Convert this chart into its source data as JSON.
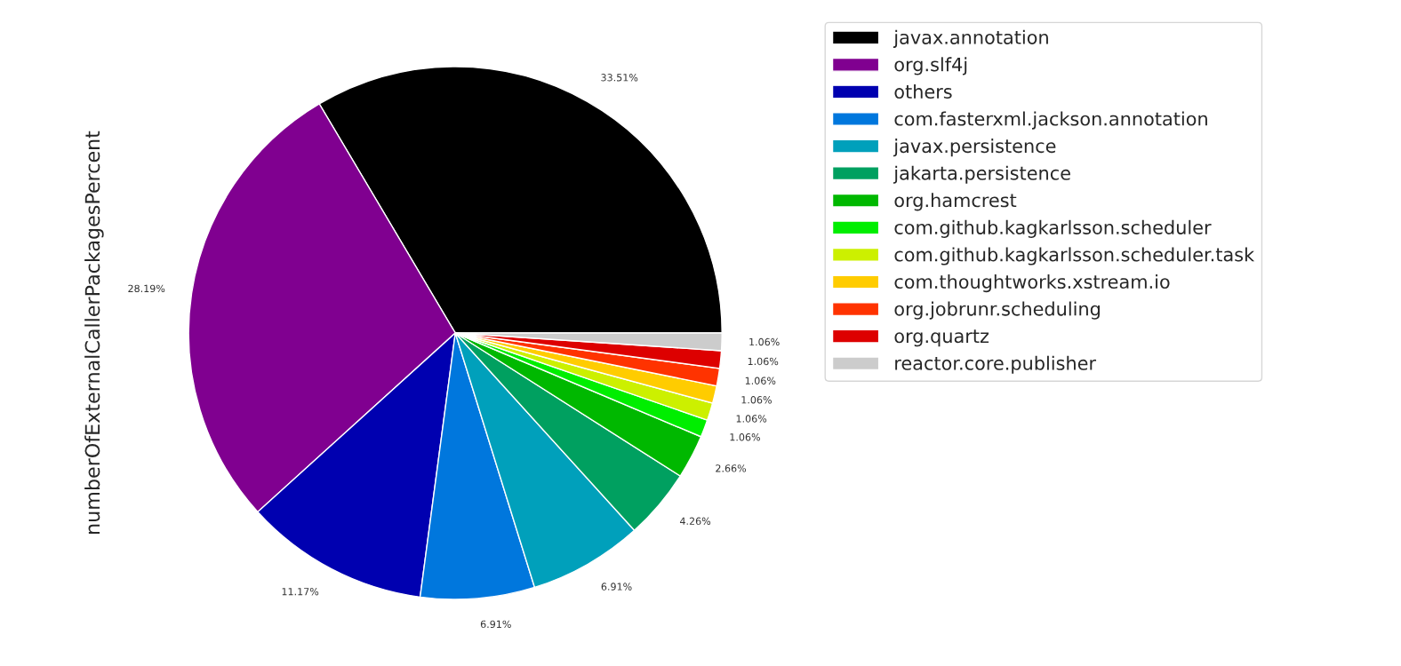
{
  "chart_data": {
    "type": "pie",
    "ylabel": "numberOfExternalCallerPackagesPercent",
    "categories": [
      "javax.annotation",
      "org.slf4j",
      "others",
      "com.fasterxml.jackson.annotation",
      "javax.persistence",
      "jakarta.persistence",
      "org.hamcrest",
      "com.github.kagkarlsson.scheduler",
      "com.github.kagkarlsson.scheduler.task",
      "com.thoughtworks.xstream.io",
      "org.jobrunr.scheduling",
      "org.quartz",
      "reactor.core.publisher"
    ],
    "values": [
      33.51,
      28.19,
      11.17,
      6.91,
      6.91,
      4.26,
      2.66,
      1.06,
      1.06,
      1.06,
      1.06,
      1.06,
      1.06
    ],
    "value_labels": [
      "33.51%",
      "28.19%",
      "11.17%",
      "6.91%",
      "6.91%",
      "4.26%",
      "2.66%",
      "1.06%",
      "1.06%",
      "1.06%",
      "1.06%",
      "1.06%",
      "1.06%"
    ],
    "colors": [
      "#000000",
      "#800090",
      "#0000b0",
      "#0077dd",
      "#00a0bb",
      "#00a060",
      "#00b800",
      "#00ee00",
      "#ccf000",
      "#ffcc00",
      "#ff3300",
      "#dd0000",
      "#cccccc"
    ],
    "legend": "right"
  }
}
